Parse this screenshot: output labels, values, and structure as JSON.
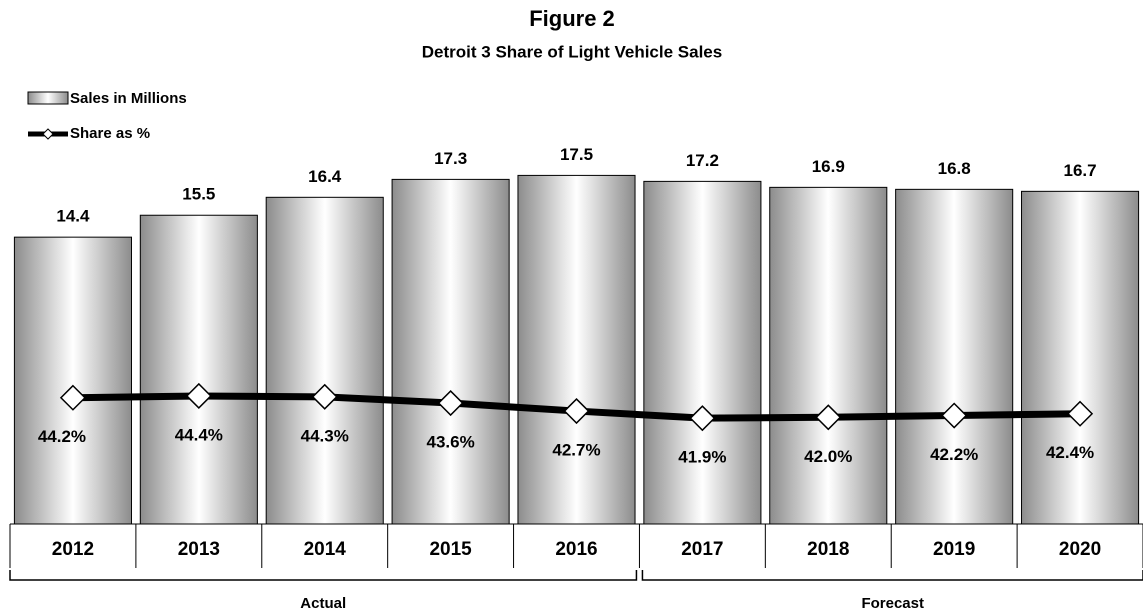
{
  "chart_data": {
    "type": "bar-line",
    "title": "Figure 2",
    "subtitle": "Detroit 3 Share of Light Vehicle Sales",
    "categories": [
      "2012",
      "2013",
      "2014",
      "2015",
      "2016",
      "2017",
      "2018",
      "2019",
      "2020"
    ],
    "series": [
      {
        "name": "Sales in Millions",
        "type": "bar",
        "color": "#8c8c8c",
        "values": [
          14.4,
          15.5,
          16.4,
          17.3,
          17.5,
          17.2,
          16.9,
          16.8,
          16.7
        ]
      },
      {
        "name": "Share as %",
        "type": "line",
        "axis": "y2",
        "color": "#000000",
        "values": [
          44.2,
          44.4,
          44.3,
          43.6,
          42.7,
          41.9,
          42.0,
          42.2,
          42.4
        ],
        "value_labels": [
          "44.2%",
          "44.4%",
          "44.3%",
          "43.6%",
          "42.7%",
          "41.9%",
          "42.0%",
          "42.2%",
          "42.4%"
        ]
      }
    ],
    "ylim": [
      0,
      25
    ],
    "y2lim": [
      30,
      86
    ],
    "annotations": [
      "Actual",
      "Forecast"
    ],
    "legend": "top-left"
  }
}
